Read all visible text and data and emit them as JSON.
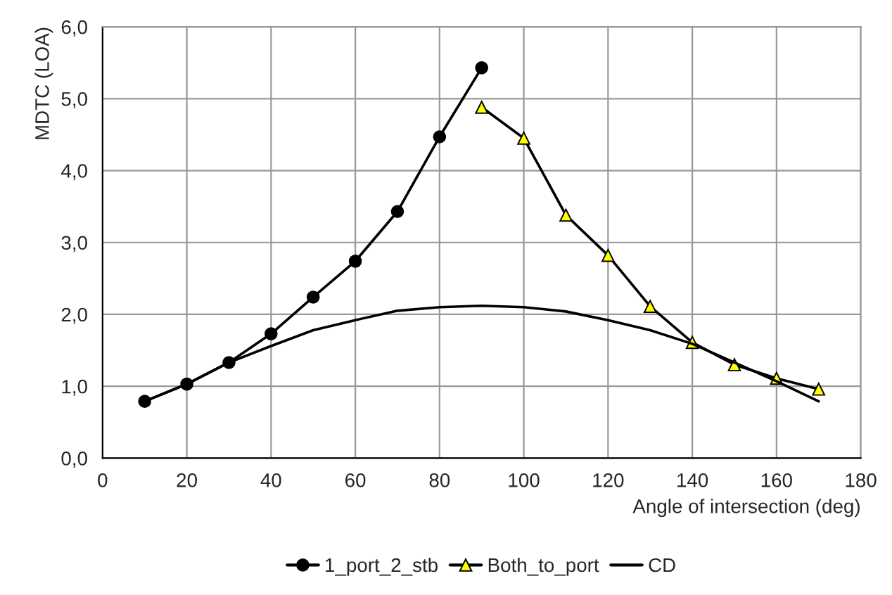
{
  "chart_data": {
    "type": "line",
    "xlabel": "Angle of intersection (deg)",
    "ylabel": "MDTC (LOA)",
    "xlim": [
      0,
      180
    ],
    "xticks": [
      0,
      20,
      40,
      60,
      80,
      100,
      120,
      140,
      160,
      180
    ],
    "ylim": [
      0,
      6
    ],
    "yticks": [
      {
        "value": 0,
        "label": "0,0"
      },
      {
        "value": 1,
        "label": "1,0"
      },
      {
        "value": 2,
        "label": "2,0"
      },
      {
        "value": 3,
        "label": "3,0"
      },
      {
        "value": 4,
        "label": "4,0"
      },
      {
        "value": 5,
        "label": "5,0"
      },
      {
        "value": 6,
        "label": "6,0"
      }
    ],
    "grid": true,
    "legend": "bottom",
    "line_style": "solid",
    "series": [
      {
        "name": "1_port_2_stb",
        "color": "#000000",
        "marker": "circle",
        "x": [
          10,
          20,
          30,
          40,
          50,
          60,
          70,
          80,
          90
        ],
        "values": [
          0.79,
          1.03,
          1.33,
          1.73,
          2.24,
          2.74,
          3.43,
          4.47,
          5.43
        ]
      },
      {
        "name": "Both_to_port",
        "color": "#ffff00",
        "marker": "triangle",
        "x": [
          90,
          100,
          110,
          120,
          130,
          140,
          150,
          160,
          170
        ],
        "values": [
          4.88,
          4.45,
          3.38,
          2.82,
          2.11,
          1.61,
          1.3,
          1.11,
          0.96
        ]
      },
      {
        "name": "CD",
        "color": "#000000",
        "marker": "none",
        "x": [
          10,
          20,
          30,
          40,
          50,
          60,
          70,
          80,
          90,
          100,
          110,
          120,
          130,
          140,
          150,
          160,
          170
        ],
        "values": [
          0.79,
          1.03,
          1.33,
          1.56,
          1.78,
          1.92,
          2.05,
          2.1,
          2.12,
          2.1,
          2.04,
          1.92,
          1.78,
          1.59,
          1.33,
          1.07,
          0.79
        ]
      }
    ]
  }
}
